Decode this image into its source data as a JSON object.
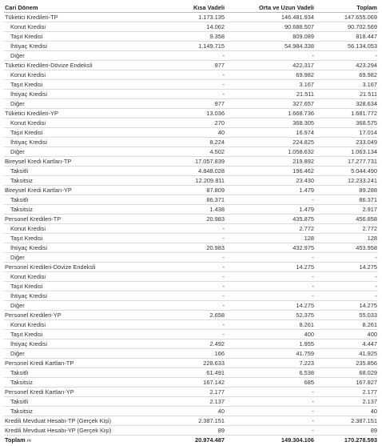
{
  "header": {
    "label": "Cari Dönem",
    "short": "Kısa Vadeli",
    "mid": "Orta ve Uzun Vadeli",
    "total": "Toplam"
  },
  "rows": [
    {
      "type": "section",
      "label": "Tüketici Kredileri-TP",
      "short": "1.173.135",
      "mid": "146.481.934",
      "total": "147.655.069"
    },
    {
      "type": "sub",
      "label": "Konut Kredisi",
      "short": "14.062",
      "mid": "90.688.507",
      "total": "90.702.569"
    },
    {
      "type": "sub",
      "label": "Taşıt Kredisi",
      "short": "9.358",
      "mid": "809.089",
      "total": "818.447"
    },
    {
      "type": "sub",
      "label": "İhtiyaç Kredisi",
      "short": "1.149.715",
      "mid": "54.984.338",
      "total": "56.134.053"
    },
    {
      "type": "sub",
      "label": "Diğer",
      "short": "-",
      "mid": "-",
      "total": "-"
    },
    {
      "type": "section",
      "label": "Tüketici Kredileri-Dövize Endeksli",
      "short": "977",
      "mid": "422.317",
      "total": "423.294"
    },
    {
      "type": "sub",
      "label": "Konut Kredisi",
      "short": "-",
      "mid": "69.982",
      "total": "69.982"
    },
    {
      "type": "sub",
      "label": "Taşıt Kredisi",
      "short": "-",
      "mid": "3.167",
      "total": "3.167"
    },
    {
      "type": "sub",
      "label": "İhtiyaç Kredisi",
      "short": "-",
      "mid": "21.511",
      "total": "21.511"
    },
    {
      "type": "sub",
      "label": "Diğer",
      "short": "977",
      "mid": "327.657",
      "total": "328.634"
    },
    {
      "type": "section",
      "label": "Tüketici Kredileri-YP",
      "short": "13.036",
      "mid": "1.668.736",
      "total": "1.681.772"
    },
    {
      "type": "sub",
      "label": "Konut Kredisi",
      "short": "270",
      "mid": "368.305",
      "total": "368.575"
    },
    {
      "type": "sub",
      "label": "Taşıt Kredisi",
      "short": "40",
      "mid": "16.974",
      "total": "17.014"
    },
    {
      "type": "sub",
      "label": "İhtiyaç Kredisi",
      "short": "8.224",
      "mid": "224.825",
      "total": "233.049"
    },
    {
      "type": "sub",
      "label": "Diğer",
      "short": "4.502",
      "mid": "1.058.632",
      "total": "1.063.134"
    },
    {
      "type": "section",
      "label": "Bireysel Kredi Kartları-TP",
      "short": "17.057.839",
      "mid": "219.892",
      "total": "17.277.731"
    },
    {
      "type": "sub",
      "label": "Taksitli",
      "short": "4.848.028",
      "mid": "196.462",
      "total": "5.044.490"
    },
    {
      "type": "sub",
      "label": "Taksitsiz",
      "short": "12.209.811",
      "mid": "23.430",
      "total": "12.233.241"
    },
    {
      "type": "section",
      "label": "Bireysel Kredi Kartları-YP",
      "short": "87.809",
      "mid": "1.479",
      "total": "89.288"
    },
    {
      "type": "sub",
      "label": "Taksitli",
      "short": "86.371",
      "mid": "-",
      "total": "86.371"
    },
    {
      "type": "sub",
      "label": "Taksitsiz",
      "short": "1.438",
      "mid": "1.479",
      "total": "2.917"
    },
    {
      "type": "section",
      "label": "Personel Kredileri-TP",
      "short": "20.983",
      "mid": "435.875",
      "total": "456.858"
    },
    {
      "type": "sub",
      "label": "Konut Kredisi",
      "short": "-",
      "mid": "2.772",
      "total": "2.772"
    },
    {
      "type": "sub",
      "label": "Taşıt Kredisi",
      "short": "-",
      "mid": "128",
      "total": "128"
    },
    {
      "type": "sub",
      "label": "İhtiyaç Kredisi",
      "short": "20.983",
      "mid": "432.975",
      "total": "453.958"
    },
    {
      "type": "sub",
      "label": "Diğer",
      "short": "-",
      "mid": "-",
      "total": "-"
    },
    {
      "type": "section",
      "label": "Personel Kredileri-Dövize Endeksli",
      "short": "-",
      "mid": "14.275",
      "total": "14.275"
    },
    {
      "type": "sub",
      "label": "Konut Kredisi",
      "short": "-",
      "mid": "-",
      "total": "-"
    },
    {
      "type": "sub",
      "label": "Taşıt Kredisi",
      "short": "-",
      "mid": "-",
      "total": "-"
    },
    {
      "type": "sub",
      "label": "İhtiyaç Kredisi",
      "short": "-",
      "mid": "-",
      "total": "-"
    },
    {
      "type": "sub",
      "label": "Diğer",
      "short": "-",
      "mid": "14.275",
      "total": "14.275"
    },
    {
      "type": "section",
      "label": "Personel Kredileri-YP",
      "short": "2.658",
      "mid": "52.375",
      "total": "55.033"
    },
    {
      "type": "sub",
      "label": "Konut Kredisi",
      "short": "-",
      "mid": "8.261",
      "total": "8.261"
    },
    {
      "type": "sub",
      "label": "Taşıt Kredisi",
      "short": "-",
      "mid": "400",
      "total": "400"
    },
    {
      "type": "sub",
      "label": "İhtiyaç Kredisi",
      "short": "2.492",
      "mid": "1.955",
      "total": "4.447"
    },
    {
      "type": "sub",
      "label": "Diğer",
      "short": "166",
      "mid": "41.759",
      "total": "41.925"
    },
    {
      "type": "section",
      "label": "Personel Kredi Kartları-TP",
      "short": "228.633",
      "mid": "7.223",
      "total": "235.856"
    },
    {
      "type": "sub",
      "label": "Taksitli",
      "short": "61.491",
      "mid": "6.538",
      "total": "68.029"
    },
    {
      "type": "sub",
      "label": "Taksitsiz",
      "short": "167.142",
      "mid": "685",
      "total": "167.827"
    },
    {
      "type": "section",
      "label": "Personel Kredi Kartları-YP",
      "short": "2.177",
      "mid": "-",
      "total": "2.177"
    },
    {
      "type": "sub",
      "label": "Taksitli",
      "short": "2.137",
      "mid": "-",
      "total": "2.137"
    },
    {
      "type": "sub",
      "label": "Taksitsiz",
      "short": "40",
      "mid": "-",
      "total": "40"
    },
    {
      "type": "section",
      "label": "Kredili Mevduat Hesabı-TP (Gerçek Kişi)",
      "short": "2.387.151",
      "mid": "-",
      "total": "2.387.151"
    },
    {
      "type": "section",
      "label": "Kredili Mevduat Hesabı-YP (Gerçek Kişi)",
      "short": "89",
      "mid": "-",
      "total": "89"
    }
  ],
  "total": {
    "label": "Toplam",
    "note": "(1)",
    "short": "20.974.487",
    "mid": "149.304.106",
    "total": "170.278.593"
  }
}
